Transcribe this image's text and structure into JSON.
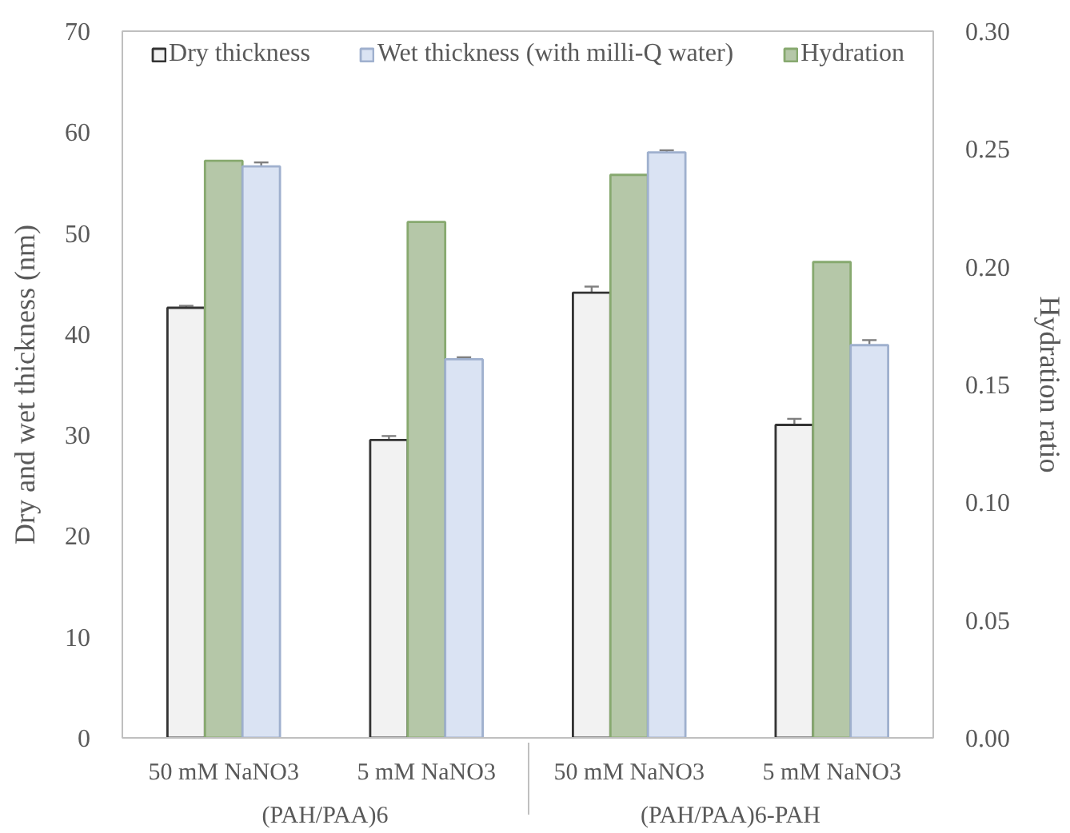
{
  "chart_data": {
    "type": "bar",
    "categories": [
      "50 mM NaNO3",
      "5 mM NaNO3",
      "50 mM NaNO3",
      "5 mM NaNO3"
    ],
    "annotations": [
      "(PAH/PAA)6",
      "(PAH/PAA)6-PAH"
    ],
    "ylabel": "Dry and wet thickness (nm)",
    "y2label": "Hydration ratio",
    "ylim": [
      0,
      70
    ],
    "yticks": [
      0,
      10,
      20,
      30,
      40,
      50,
      60,
      70
    ],
    "y2lim": [
      0,
      0.3
    ],
    "y2ticks": [
      {
        "value": 0,
        "label": "0.00"
      },
      {
        "value": 0.05,
        "label": "0.05"
      },
      {
        "value": 0.1,
        "label": "0.10"
      },
      {
        "value": 0.15,
        "label": "0.15"
      },
      {
        "value": 0.2,
        "label": "0.20"
      },
      {
        "value": 0.25,
        "label": "0.25"
      },
      {
        "value": 0.3,
        "label": "0.30"
      }
    ],
    "legend": "top",
    "series": [
      {
        "name": "Dry thickness",
        "color": "#f2f2f2",
        "values": [
          42.6,
          29.5,
          44.1,
          31.0
        ],
        "errors": [
          0.2,
          0.4,
          0.6,
          0.6
        ]
      },
      {
        "name": "Wet thickness (with milli-Q water)",
        "color": "#dae3f3",
        "values": [
          56.6,
          37.5,
          58.0,
          38.9
        ],
        "errors": [
          0.4,
          0.2,
          0.2,
          0.5
        ]
      },
      {
        "name": "Hydration",
        "color": "#b5c7a8",
        "values": [
          0.245,
          0.219,
          0.239,
          0.202
        ],
        "axis": "y2"
      }
    ]
  }
}
